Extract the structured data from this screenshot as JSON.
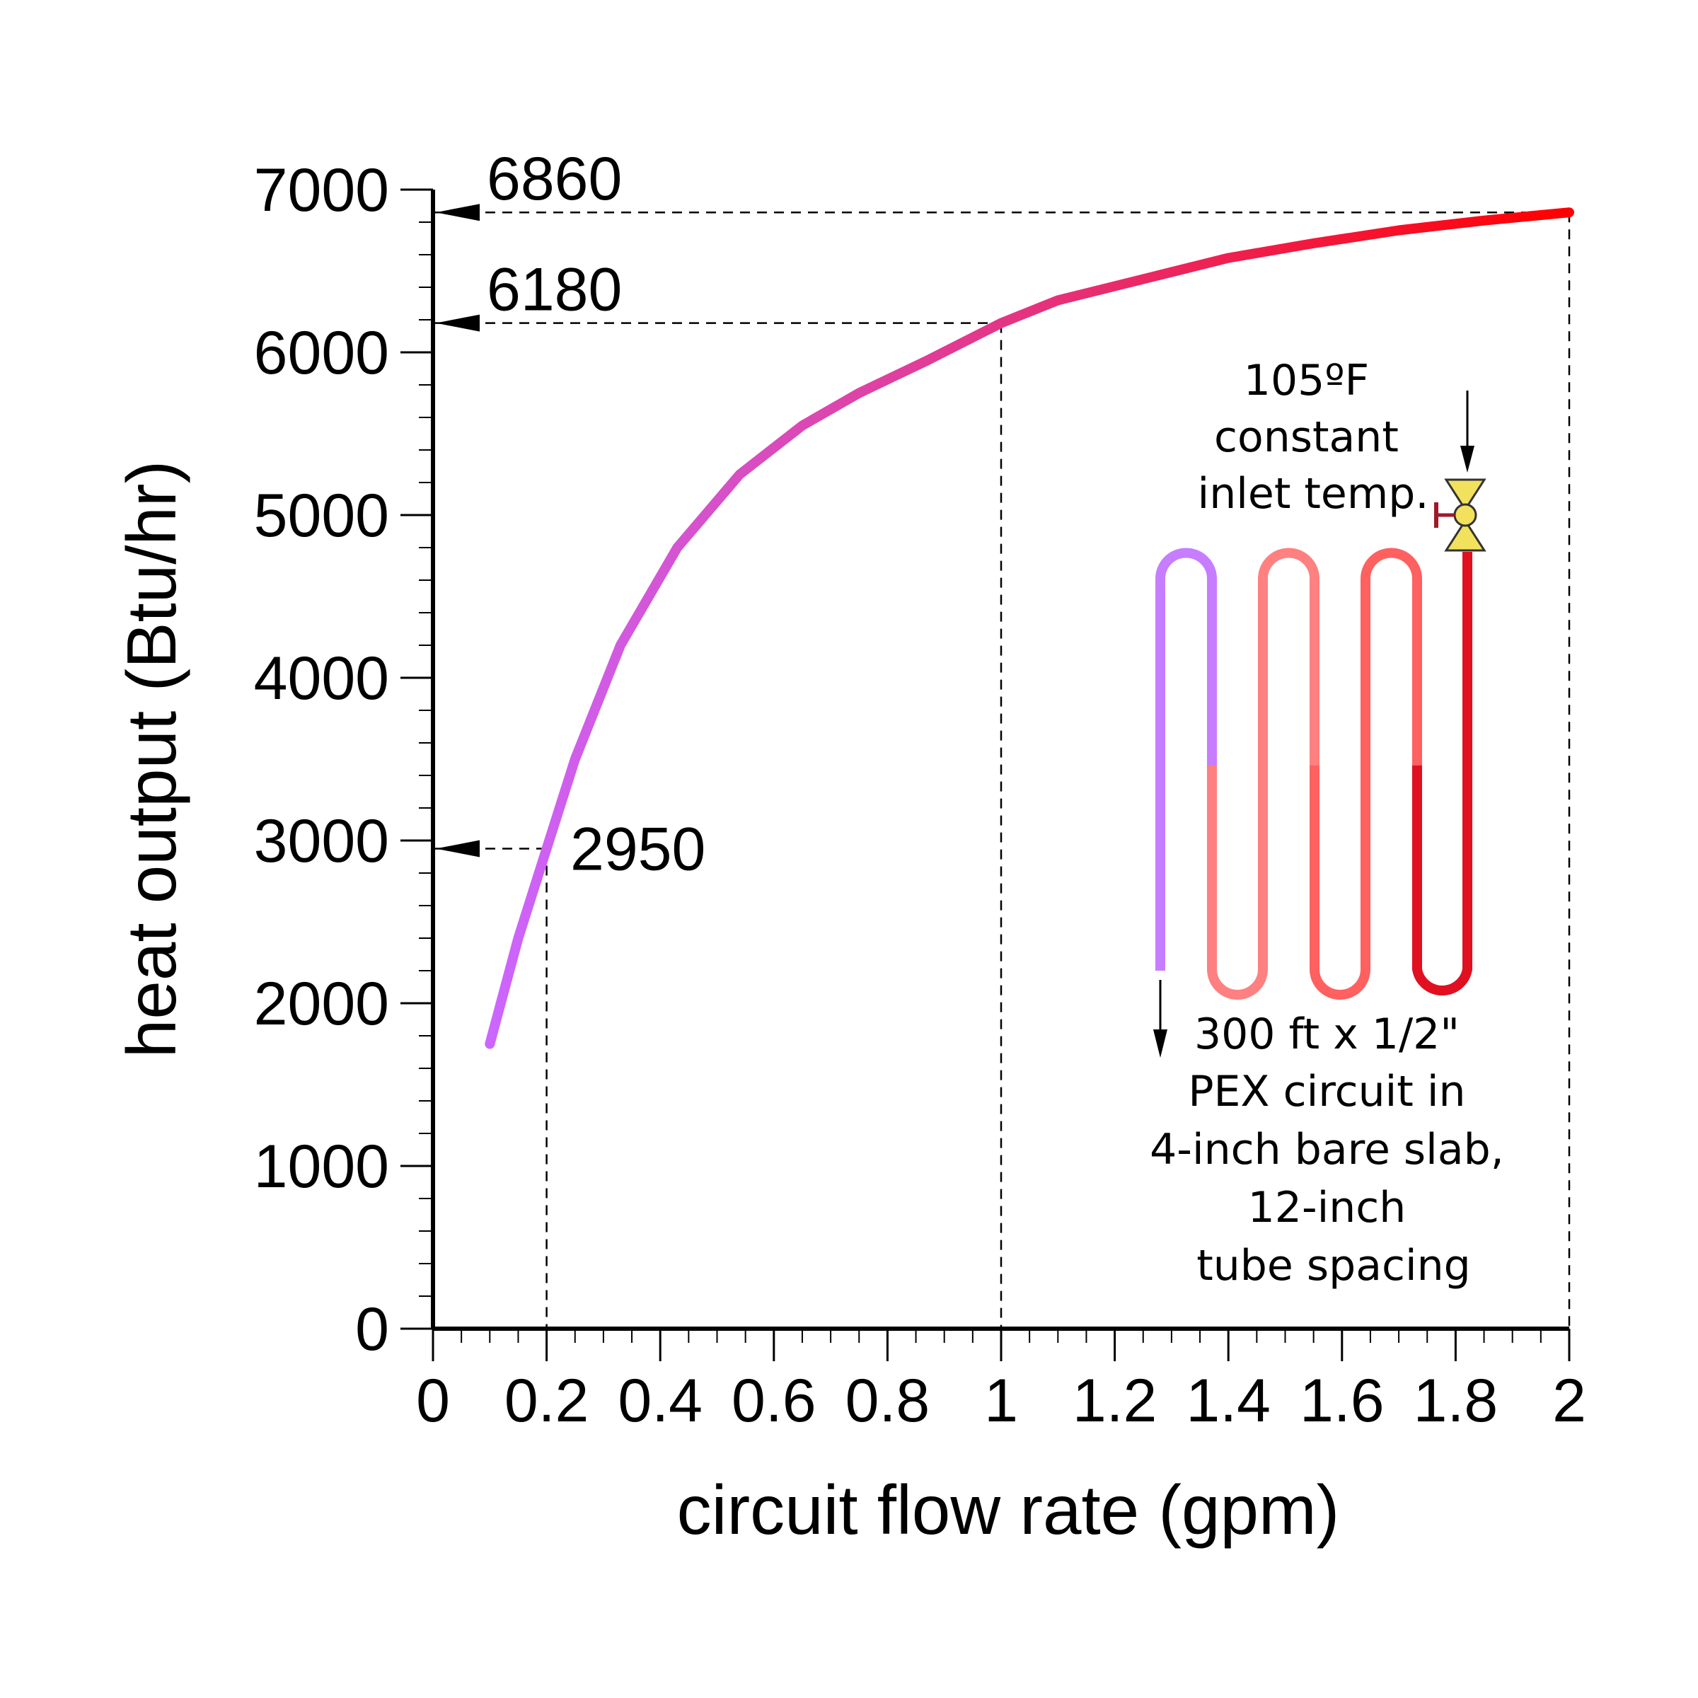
{
  "chart_data": {
    "type": "line",
    "title": "",
    "xlabel": "circuit flow rate (gpm)",
    "ylabel": "heat output (Btu/hr)",
    "xlim": [
      0,
      2
    ],
    "ylim": [
      0,
      7000
    ],
    "grid": false,
    "x_ticks": [
      0,
      0.2,
      0.4,
      0.6,
      0.8,
      1,
      1.2,
      1.4,
      1.6,
      1.8,
      2
    ],
    "x_tick_labels": [
      "0",
      "0.2",
      "0.4",
      "0.6",
      "0.8",
      "1",
      "1.2",
      "1.4",
      "1.6",
      "1.8",
      "2"
    ],
    "y_ticks": [
      0,
      1000,
      2000,
      3000,
      4000,
      5000,
      6000,
      7000
    ],
    "y_tick_labels": [
      "0",
      "1000",
      "2000",
      "3000",
      "4000",
      "5000",
      "6000",
      "7000"
    ],
    "series": [
      {
        "name": "heat output",
        "color_start": "#cc66ff",
        "color_end": "#ff0000",
        "x": [
          0.1,
          0.15,
          0.2,
          0.25,
          0.33,
          0.43,
          0.54,
          0.65,
          0.75,
          0.87,
          1.0,
          1.1,
          1.25,
          1.4,
          1.55,
          1.7,
          1.85,
          2.0
        ],
        "y": [
          1750,
          2400,
          2950,
          3500,
          4200,
          4800,
          5250,
          5550,
          5750,
          5950,
          6180,
          6320,
          6450,
          6580,
          6670,
          6750,
          6810,
          6860
        ]
      }
    ],
    "annotations": [
      {
        "label": "6860",
        "x": 2.0,
        "y": 6860
      },
      {
        "label": "6180",
        "x": 1.0,
        "y": 6180
      },
      {
        "label": "2950",
        "x": 0.2,
        "y": 2950
      }
    ]
  },
  "inset": {
    "inlet_note": [
      "105ºF",
      "constant",
      "inlet temp."
    ],
    "circuit_note": [
      "300 ft x 1/2\"",
      "PEX circuit in",
      "4-inch bare slab,",
      "12-inch",
      "tube spacing"
    ],
    "colors": [
      "#c77dff",
      "#ff8080",
      "#ff6060",
      "#ff3040",
      "#e01020"
    ]
  }
}
